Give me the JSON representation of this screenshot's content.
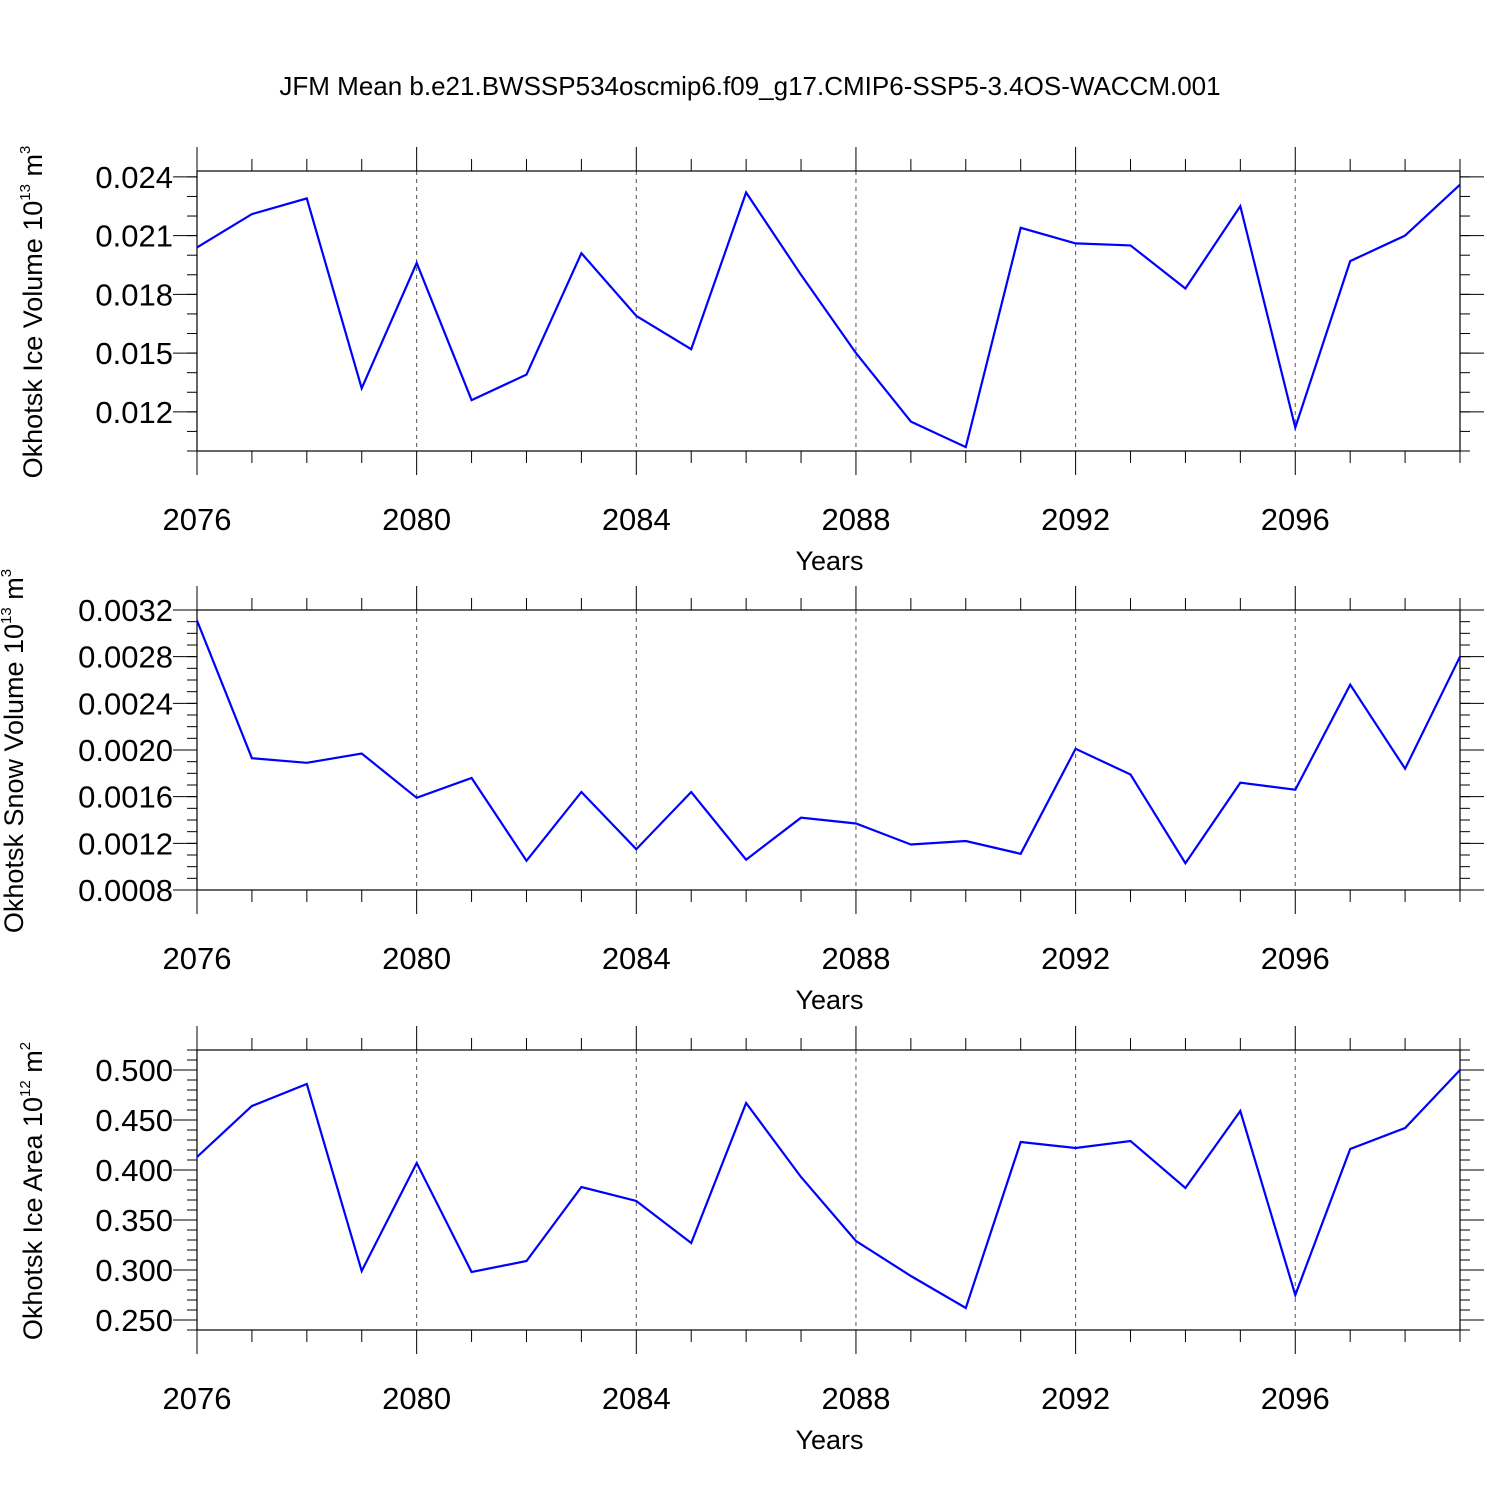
{
  "title": "JFM Mean b.e21.BWSSP534oscmip6.f09_g17.CMIP6-SSP5-3.4OS-WACCM.001",
  "colors": {
    "line": "#0000ff",
    "axis": "#000000",
    "grid": "#555555"
  },
  "panels": [
    {
      "ylabel_main": "Okhotsk Ice Volume 10",
      "ylabel_exp": "13",
      "ylabel_unit": " m",
      "ylabel_unit_exp": "3",
      "xlabel": "Years",
      "x_tick_labels": [
        "2076",
        "2080",
        "2084",
        "2088",
        "2092",
        "2096"
      ],
      "y_tick_labels": [
        "0.012",
        "0.015",
        "0.018",
        "0.021",
        "0.024"
      ]
    },
    {
      "ylabel_main": "Okhotsk Snow Volume 10",
      "ylabel_exp": "13",
      "ylabel_unit": " m",
      "ylabel_unit_exp": "3",
      "xlabel": "Years",
      "x_tick_labels": [
        "2076",
        "2080",
        "2084",
        "2088",
        "2092",
        "2096"
      ],
      "y_tick_labels": [
        "0.0008",
        "0.0012",
        "0.0016",
        "0.0020",
        "0.0024",
        "0.0028",
        "0.0032"
      ]
    },
    {
      "ylabel_main": "Okhotsk Ice Area 10",
      "ylabel_exp": "12",
      "ylabel_unit": " m",
      "ylabel_unit_exp": "2",
      "xlabel": "Years",
      "x_tick_labels": [
        "2076",
        "2080",
        "2084",
        "2088",
        "2092",
        "2096"
      ],
      "y_tick_labels": [
        "0.250",
        "0.300",
        "0.350",
        "0.400",
        "0.450",
        "0.500"
      ]
    }
  ],
  "chart_data": [
    {
      "type": "line",
      "title": "JFM Mean b.e21.BWSSP534oscmip6.f09_g17.CMIP6-SSP5-3.4OS-WACCM.001",
      "xlabel": "Years",
      "ylabel": "Okhotsk Ice Volume 10^13 m^3",
      "xlim": [
        2076,
        2099
      ],
      "ylim": [
        0.01,
        0.0243
      ],
      "x_ticks": [
        2076,
        2080,
        2084,
        2088,
        2092,
        2096
      ],
      "y_ticks": [
        0.012,
        0.015,
        0.018,
        0.021,
        0.024
      ],
      "y_minor_step": 0.001,
      "grid": "vertical dashed at major x ticks",
      "x": [
        2076,
        2077,
        2078,
        2079,
        2080,
        2081,
        2082,
        2083,
        2084,
        2085,
        2086,
        2087,
        2088,
        2089,
        2090,
        2091,
        2092,
        2093,
        2094,
        2095,
        2096,
        2097,
        2098,
        2099
      ],
      "series": [
        {
          "values": [
            0.0204,
            0.0221,
            0.0229,
            0.0132,
            0.0196,
            0.0126,
            0.0139,
            0.0201,
            0.0169,
            0.0152,
            0.0232,
            0.019,
            0.015,
            0.0115,
            0.0102,
            0.0214,
            0.0206,
            0.0205,
            0.0183,
            0.0225,
            0.0112,
            0.0197,
            0.021,
            0.0236
          ]
        }
      ]
    },
    {
      "type": "line",
      "xlabel": "Years",
      "ylabel": "Okhotsk Snow Volume 10^13 m^3",
      "xlim": [
        2076,
        2099
      ],
      "ylim": [
        0.0008,
        0.0032
      ],
      "x_ticks": [
        2076,
        2080,
        2084,
        2088,
        2092,
        2096
      ],
      "y_ticks": [
        0.0008,
        0.0012,
        0.0016,
        0.002,
        0.0024,
        0.0028,
        0.0032
      ],
      "y_minor_step": 0.0001,
      "grid": "vertical dashed at major x ticks",
      "x": [
        2076,
        2077,
        2078,
        2079,
        2080,
        2081,
        2082,
        2083,
        2084,
        2085,
        2086,
        2087,
        2088,
        2089,
        2090,
        2091,
        2092,
        2093,
        2094,
        2095,
        2096,
        2097,
        2098,
        2099
      ],
      "series": [
        {
          "values": [
            0.00311,
            0.00193,
            0.00189,
            0.00197,
            0.00159,
            0.00176,
            0.00105,
            0.00164,
            0.00115,
            0.00164,
            0.00106,
            0.00142,
            0.00137,
            0.00119,
            0.00122,
            0.00111,
            0.00201,
            0.00179,
            0.00103,
            0.00172,
            0.00166,
            0.00256,
            0.00184,
            0.0028
          ]
        }
      ]
    },
    {
      "type": "line",
      "xlabel": "Years",
      "ylabel": "Okhotsk Ice Area 10^12 m^2",
      "xlim": [
        2076,
        2099
      ],
      "ylim": [
        0.24,
        0.52
      ],
      "x_ticks": [
        2076,
        2080,
        2084,
        2088,
        2092,
        2096
      ],
      "y_ticks": [
        0.25,
        0.3,
        0.35,
        0.4,
        0.45,
        0.5
      ],
      "y_minor_step": 0.01,
      "grid": "vertical dashed at major x ticks",
      "x": [
        2076,
        2077,
        2078,
        2079,
        2080,
        2081,
        2082,
        2083,
        2084,
        2085,
        2086,
        2087,
        2088,
        2089,
        2090,
        2091,
        2092,
        2093,
        2094,
        2095,
        2096,
        2097,
        2098,
        2099
      ],
      "series": [
        {
          "values": [
            0.413,
            0.464,
            0.486,
            0.299,
            0.407,
            0.298,
            0.309,
            0.383,
            0.369,
            0.327,
            0.467,
            0.393,
            0.329,
            0.294,
            0.262,
            0.428,
            0.422,
            0.429,
            0.382,
            0.459,
            0.275,
            0.421,
            0.442,
            0.5
          ]
        }
      ]
    }
  ]
}
